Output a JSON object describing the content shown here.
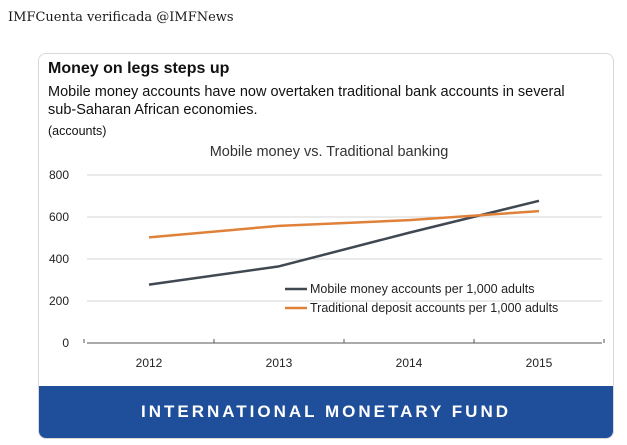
{
  "tweet": {
    "header": "IMFCuenta verificada @IMFNews"
  },
  "card": {
    "title": "Money on legs steps up",
    "subtitle": "Mobile money accounts have now overtaken traditional bank accounts in several sub-Saharan African economies.",
    "unit": "(accounts)",
    "footer": "INTERNATIONAL MONETARY FUND"
  },
  "colors": {
    "mobile": "#404852",
    "traditional": "#e0813a",
    "footer_bg": "#1f4f9b"
  },
  "chart_data": {
    "type": "line",
    "title": "Mobile money vs. Traditional banking",
    "ylabel": "(accounts)",
    "xlabel": "",
    "categories": [
      "2012",
      "2013",
      "2014",
      "2015"
    ],
    "ylim": [
      0,
      800
    ],
    "yticks": [
      0,
      200,
      400,
      600,
      800
    ],
    "grid": true,
    "legend_position": "bottom-right",
    "series": [
      {
        "name": "Mobile money accounts per 1,000 adults",
        "values": [
          278,
          365,
          525,
          677
        ],
        "color": "#404852"
      },
      {
        "name": "Traditional deposit accounts per 1,000 adults",
        "values": [
          503,
          558,
          585,
          628
        ],
        "color": "#e0813a"
      }
    ]
  }
}
